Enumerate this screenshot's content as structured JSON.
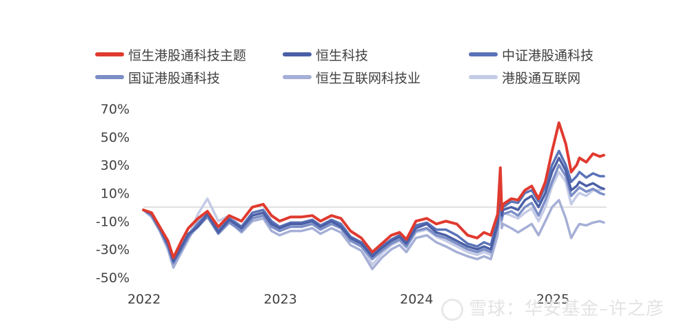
{
  "watermark": "雪球：华安基金–许之彦",
  "chart_data": {
    "type": "line",
    "xlim": [
      2022.0,
      2025.4
    ],
    "xticks": [
      "2022",
      "2023",
      "2024",
      "2025"
    ],
    "ylim": [
      -50,
      70
    ],
    "yticks": [
      -50,
      -30,
      -10,
      10,
      30,
      50,
      70
    ],
    "ytick_labels": [
      "-50%",
      "-30%",
      "-10%",
      "10%",
      "30%",
      "50%",
      "70%"
    ],
    "zero_line": true,
    "grid": false,
    "legend_position": "top",
    "series": [
      {
        "name": "恒生港股通科技主题",
        "color": "#e03a2f",
        "x": [
          2022.0,
          2022.06,
          2022.12,
          2022.18,
          2022.22,
          2022.28,
          2022.33,
          2022.4,
          2022.47,
          2022.55,
          2022.63,
          2022.72,
          2022.8,
          2022.88,
          2022.94,
          2023.0,
          2023.08,
          2023.16,
          2023.24,
          2023.3,
          2023.38,
          2023.45,
          2023.52,
          2023.6,
          2023.68,
          2023.75,
          2023.82,
          2023.88,
          2023.93,
          2024.0,
          2024.08,
          2024.15,
          2024.22,
          2024.3,
          2024.38,
          2024.45,
          2024.5,
          2024.55,
          2024.6,
          2024.62,
          2024.63,
          2024.64,
          2024.7,
          2024.75,
          2024.8,
          2024.85,
          2024.9,
          2024.95,
          2025.0,
          2025.05,
          2025.1,
          2025.14,
          2025.18,
          2025.2,
          2025.25,
          2025.3,
          2025.35,
          2025.38
        ],
        "y": [
          -2,
          -4,
          -14,
          -24,
          -36,
          -24,
          -15,
          -8,
          -3,
          -14,
          -6,
          -10,
          0,
          2,
          -6,
          -10,
          -7,
          -7,
          -6,
          -10,
          -6,
          -8,
          -17,
          -22,
          -32,
          -26,
          -20,
          -18,
          -23,
          -10,
          -8,
          -12,
          -10,
          -12,
          -20,
          -22,
          -18,
          -20,
          -5,
          28,
          -2,
          2,
          6,
          5,
          12,
          15,
          6,
          18,
          40,
          60,
          45,
          25,
          30,
          35,
          32,
          38,
          36,
          37
        ]
      },
      {
        "name": "恒生科技",
        "color": "#4a5fa6",
        "x": [
          2022.0,
          2022.06,
          2022.12,
          2022.18,
          2022.22,
          2022.28,
          2022.33,
          2022.4,
          2022.47,
          2022.55,
          2022.63,
          2022.72,
          2022.8,
          2022.88,
          2022.94,
          2023.0,
          2023.08,
          2023.16,
          2023.24,
          2023.3,
          2023.38,
          2023.45,
          2023.52,
          2023.6,
          2023.68,
          2023.75,
          2023.82,
          2023.88,
          2023.93,
          2024.0,
          2024.08,
          2024.15,
          2024.22,
          2024.3,
          2024.38,
          2024.45,
          2024.5,
          2024.55,
          2024.6,
          2024.62,
          2024.63,
          2024.64,
          2024.7,
          2024.75,
          2024.8,
          2024.85,
          2024.9,
          2024.95,
          2025.0,
          2025.05,
          2025.1,
          2025.14,
          2025.18,
          2025.2,
          2025.25,
          2025.3,
          2025.35,
          2025.38
        ],
        "y": [
          -2,
          -5,
          -15,
          -26,
          -38,
          -28,
          -19,
          -14,
          -5,
          -18,
          -9,
          -15,
          -6,
          -4,
          -12,
          -15,
          -12,
          -12,
          -10,
          -14,
          -10,
          -14,
          -22,
          -26,
          -35,
          -29,
          -24,
          -21,
          -26,
          -15,
          -12,
          -18,
          -20,
          -24,
          -28,
          -30,
          -28,
          -30,
          -12,
          15,
          -6,
          -2,
          0,
          -2,
          5,
          8,
          0,
          10,
          25,
          35,
          26,
          12,
          15,
          18,
          15,
          17,
          14,
          13
        ]
      },
      {
        "name": "中证港股通科技",
        "color": "#5a73b8",
        "x": [
          2022.0,
          2022.06,
          2022.12,
          2022.18,
          2022.22,
          2022.28,
          2022.33,
          2022.4,
          2022.47,
          2022.55,
          2022.63,
          2022.72,
          2022.8,
          2022.88,
          2022.94,
          2023.0,
          2023.08,
          2023.16,
          2023.24,
          2023.3,
          2023.38,
          2023.45,
          2023.52,
          2023.6,
          2023.68,
          2023.75,
          2023.82,
          2023.88,
          2023.93,
          2024.0,
          2024.08,
          2024.15,
          2024.22,
          2024.3,
          2024.38,
          2024.45,
          2024.5,
          2024.55,
          2024.6,
          2024.62,
          2024.63,
          2024.64,
          2024.7,
          2024.75,
          2024.8,
          2024.85,
          2024.9,
          2024.95,
          2025.0,
          2025.05,
          2025.1,
          2025.14,
          2025.18,
          2025.2,
          2025.25,
          2025.3,
          2025.35,
          2025.38
        ],
        "y": [
          -2,
          -5,
          -15,
          -27,
          -39,
          -29,
          -20,
          -12,
          -5,
          -17,
          -8,
          -14,
          -4,
          -2,
          -10,
          -14,
          -11,
          -11,
          -9,
          -13,
          -9,
          -12,
          -21,
          -25,
          -34,
          -28,
          -23,
          -20,
          -25,
          -13,
          -11,
          -16,
          -16,
          -20,
          -26,
          -28,
          -25,
          -27,
          -8,
          18,
          -4,
          0,
          4,
          3,
          10,
          12,
          4,
          15,
          30,
          40,
          30,
          18,
          22,
          25,
          21,
          24,
          22,
          22
        ]
      },
      {
        "name": "国证港股通科技",
        "color": "#7b8ec6",
        "x": [
          2022.0,
          2022.06,
          2022.12,
          2022.18,
          2022.22,
          2022.28,
          2022.33,
          2022.4,
          2022.47,
          2022.55,
          2022.63,
          2022.72,
          2022.8,
          2022.88,
          2022.94,
          2023.0,
          2023.08,
          2023.16,
          2023.24,
          2023.3,
          2023.38,
          2023.45,
          2023.52,
          2023.6,
          2023.68,
          2023.75,
          2023.82,
          2023.88,
          2023.93,
          2024.0,
          2024.08,
          2024.15,
          2024.22,
          2024.3,
          2024.38,
          2024.45,
          2024.5,
          2024.55,
          2024.6,
          2024.62,
          2024.63,
          2024.64,
          2024.7,
          2024.75,
          2024.8,
          2024.85,
          2024.9,
          2024.95,
          2025.0,
          2025.05,
          2025.1,
          2025.14,
          2025.18,
          2025.2,
          2025.25,
          2025.3,
          2025.35,
          2025.38
        ],
        "y": [
          -2,
          -6,
          -16,
          -28,
          -40,
          -30,
          -21,
          -14,
          -7,
          -19,
          -11,
          -17,
          -8,
          -6,
          -14,
          -17,
          -14,
          -14,
          -12,
          -16,
          -12,
          -15,
          -24,
          -28,
          -37,
          -31,
          -26,
          -23,
          -28,
          -17,
          -15,
          -20,
          -22,
          -26,
          -30,
          -32,
          -30,
          -32,
          -14,
          12,
          -9,
          -5,
          -3,
          -6,
          0,
          3,
          -6,
          5,
          18,
          30,
          22,
          8,
          12,
          14,
          11,
          13,
          10,
          9
        ]
      },
      {
        "name": "恒生互联网科技业",
        "color": "#a5afd6",
        "x": [
          2022.0,
          2022.06,
          2022.12,
          2022.18,
          2022.22,
          2022.28,
          2022.33,
          2022.4,
          2022.47,
          2022.55,
          2022.63,
          2022.72,
          2022.8,
          2022.88,
          2022.94,
          2023.0,
          2023.08,
          2023.16,
          2023.24,
          2023.3,
          2023.38,
          2023.45,
          2023.52,
          2023.6,
          2023.68,
          2023.75,
          2023.82,
          2023.88,
          2023.93,
          2024.0,
          2024.08,
          2024.15,
          2024.22,
          2024.3,
          2024.38,
          2024.45,
          2024.5,
          2024.55,
          2024.6,
          2024.62,
          2024.63,
          2024.64,
          2024.7,
          2024.75,
          2024.8,
          2024.85,
          2024.9,
          2024.95,
          2025.0,
          2025.05,
          2025.1,
          2025.14,
          2025.18,
          2025.2,
          2025.25,
          2025.3,
          2025.35,
          2025.38
        ],
        "y": [
          -2,
          -7,
          -17,
          -30,
          -43,
          -32,
          -23,
          -10,
          -4,
          -16,
          -10,
          -18,
          -10,
          -8,
          -17,
          -20,
          -17,
          -17,
          -15,
          -19,
          -15,
          -18,
          -27,
          -31,
          -44,
          -36,
          -30,
          -27,
          -32,
          -22,
          -20,
          -25,
          -28,
          -32,
          -35,
          -37,
          -35,
          -37,
          -20,
          5,
          -15,
          -12,
          -15,
          -18,
          -15,
          -12,
          -20,
          -10,
          0,
          5,
          -8,
          -22,
          -15,
          -12,
          -13,
          -11,
          -10,
          -11
        ]
      },
      {
        "name": "港股通互联网",
        "color": "#c4cbe6",
        "x": [
          2022.0,
          2022.06,
          2022.12,
          2022.18,
          2022.22,
          2022.28,
          2022.33,
          2022.4,
          2022.47,
          2022.55,
          2022.63,
          2022.72,
          2022.8,
          2022.88,
          2022.94,
          2023.0,
          2023.08,
          2023.16,
          2023.24,
          2023.3,
          2023.38,
          2023.45,
          2023.52,
          2023.6,
          2023.68,
          2023.75,
          2023.82,
          2023.88,
          2023.93,
          2024.0,
          2024.08,
          2024.15,
          2024.22,
          2024.3,
          2024.38,
          2024.45,
          2024.5,
          2024.55,
          2024.6,
          2024.62,
          2024.63,
          2024.64,
          2024.7,
          2024.75,
          2024.8,
          2024.85,
          2024.9,
          2024.95,
          2025.0,
          2025.05,
          2025.1,
          2025.14,
          2025.18,
          2025.2,
          2025.25,
          2025.3,
          2025.35,
          2025.38
        ],
        "y": [
          -2,
          -6,
          -16,
          -28,
          -41,
          -30,
          -21,
          -5,
          6,
          -10,
          -6,
          -14,
          -4,
          -2,
          -12,
          -16,
          -13,
          -13,
          -11,
          -15,
          -11,
          -14,
          -23,
          -27,
          -41,
          -33,
          -27,
          -24,
          -29,
          -18,
          -16,
          -21,
          -24,
          -28,
          -32,
          -34,
          -32,
          -34,
          -16,
          10,
          -8,
          -4,
          -6,
          -8,
          -4,
          -1,
          -10,
          0,
          15,
          25,
          18,
          2,
          8,
          10,
          8,
          12,
          12,
          13
        ]
      }
    ]
  }
}
